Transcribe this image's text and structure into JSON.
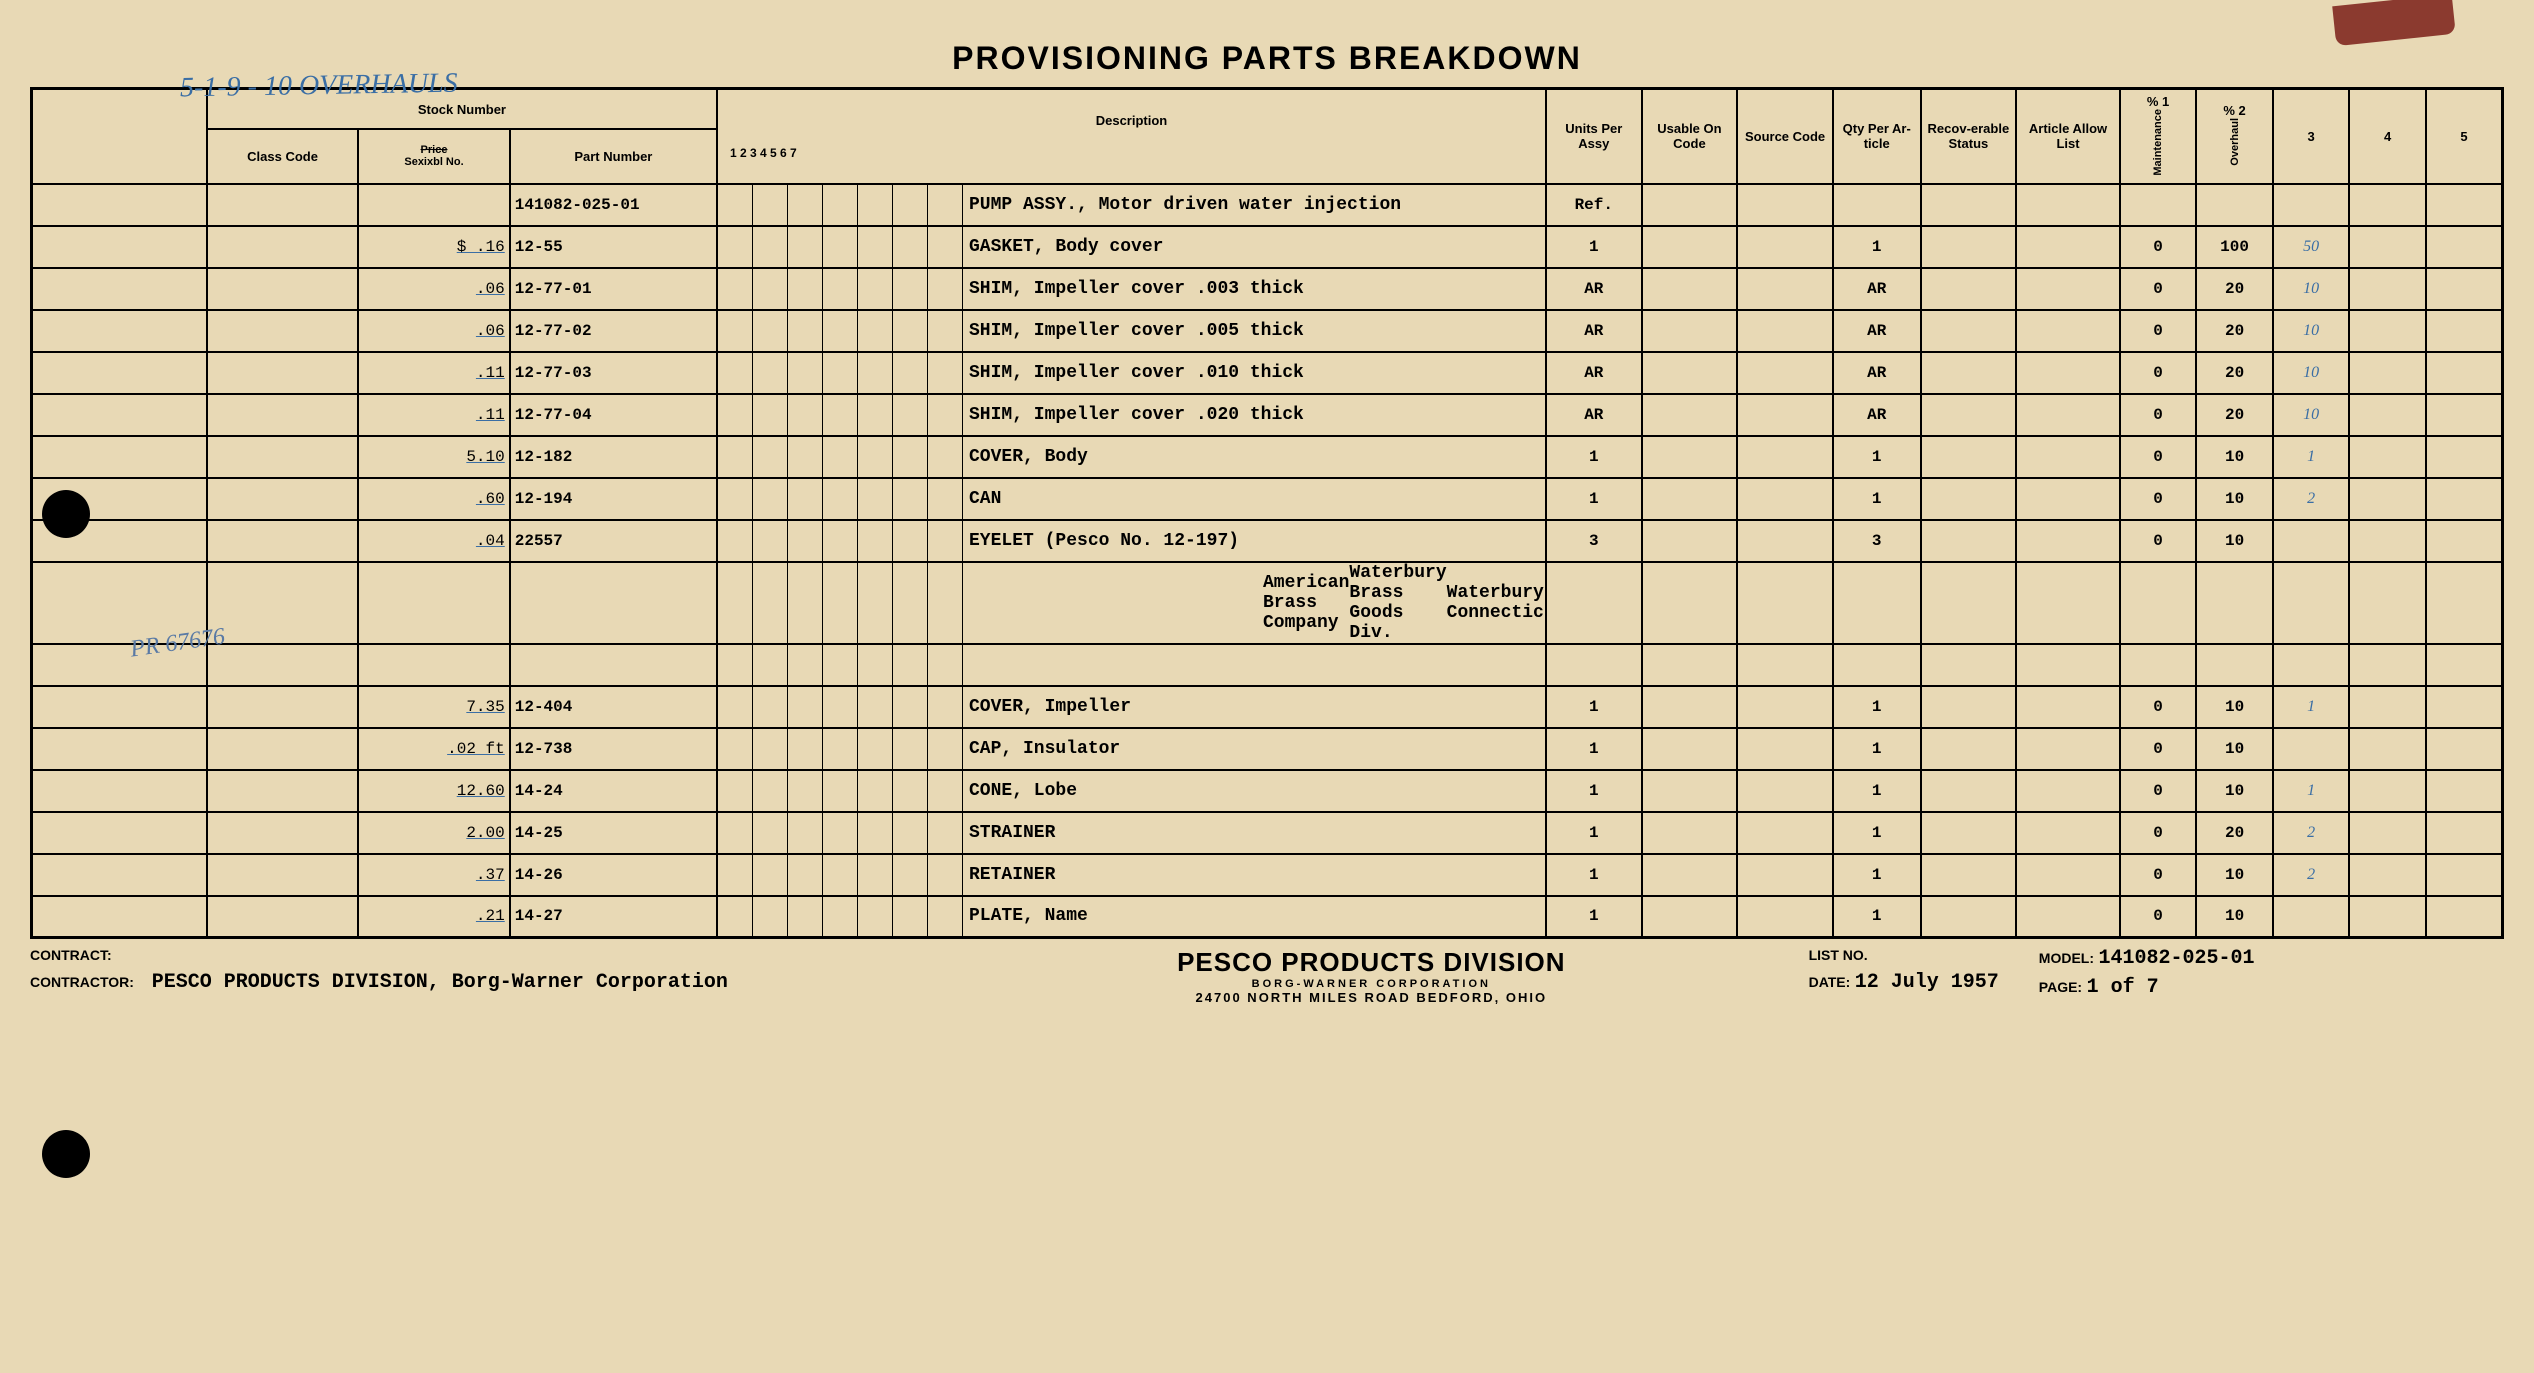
{
  "title": "PROVISIONING PARTS BREAKDOWN",
  "handwriting_top": "5-1-9 -   10 OVERHAULS",
  "headers": {
    "stock_number": "Stock Number",
    "class_code": "Class Code",
    "price_strike": "Price",
    "price_label": "Sexixbl No.",
    "part_number": "Part Number",
    "description": "Description",
    "desc_nums": [
      "1",
      "2",
      "3",
      "4",
      "5",
      "6",
      "7"
    ],
    "units": "Units Per Assy",
    "usable": "Usable On Code",
    "source": "Source Code",
    "qty": "Qty Per Ar-ticle",
    "recov": "Recov-erable Status",
    "article": "Article Allow List",
    "pct1": "% 1",
    "maint": "Maintenance",
    "pct2": "% 2",
    "overhaul": "Overhaul",
    "pct3": "3",
    "pct4": "4",
    "pct5": "5"
  },
  "rows": [
    {
      "price": "",
      "part": "141082-025-01",
      "desc": "PUMP ASSY., Motor driven water injection",
      "units": "Ref.",
      "qty": "",
      "p1": "",
      "p2": "",
      "hand3": ""
    },
    {
      "price": "$  .16",
      "part": "12-55",
      "desc": "GASKET, Body cover",
      "units": "1",
      "qty": "1",
      "p1": "0",
      "p2": "100",
      "hand3": "50"
    },
    {
      "price": ".06",
      "part": "12-77-01",
      "desc": "SHIM, Impeller cover   .003 thick",
      "units": "AR",
      "qty": "AR",
      "p1": "0",
      "p2": "20",
      "hand3": "10"
    },
    {
      "price": ".06",
      "part": "12-77-02",
      "desc": "SHIM, Impeller cover   .005 thick",
      "units": "AR",
      "qty": "AR",
      "p1": "0",
      "p2": "20",
      "hand3": "10"
    },
    {
      "price": ".11",
      "part": "12-77-03",
      "desc": "SHIM, Impeller cover   .010 thick",
      "units": "AR",
      "qty": "AR",
      "p1": "0",
      "p2": "20",
      "hand3": "10"
    },
    {
      "price": ".11",
      "part": "12-77-04",
      "desc": "SHIM, Impeller cover   .020 thick",
      "units": "AR",
      "qty": "AR",
      "p1": "0",
      "p2": "20",
      "hand3": "10"
    },
    {
      "price": "5.10",
      "part": "12-182",
      "desc": "COVER, Body",
      "units": "1",
      "qty": "1",
      "p1": "0",
      "p2": "10",
      "hand3": "1"
    },
    {
      "price": ".60",
      "part": "12-194",
      "desc": "CAN",
      "units": "1",
      "qty": "1",
      "p1": "0",
      "p2": "10",
      "hand3": "2"
    },
    {
      "price": ".04",
      "part": "22557",
      "desc": "EYELET (Pesco No. 12-197)",
      "units": "3",
      "qty": "3",
      "p1": "0",
      "p2": "10",
      "hand3": ""
    },
    {
      "price": "",
      "part": "",
      "desc": "American Brass Company\nWaterbury Brass Goods Div.\nWaterbury, Connecticut",
      "units": "",
      "qty": "",
      "p1": "",
      "p2": "",
      "hand3": "",
      "tall": true,
      "indent": true
    },
    {
      "price": "",
      "part": "",
      "desc": "",
      "units": "",
      "qty": "",
      "p1": "",
      "p2": "",
      "hand3": ""
    },
    {
      "price": "7.35",
      "part": "12-404",
      "desc": "COVER, Impeller",
      "units": "1",
      "qty": "1",
      "p1": "0",
      "p2": "10",
      "hand3": "1"
    },
    {
      "price": ".02 ft",
      "part": "12-738",
      "desc": "CAP, Insulator",
      "units": "1",
      "qty": "1",
      "p1": "0",
      "p2": "10",
      "hand3": ""
    },
    {
      "price": "12.60",
      "part": "14-24",
      "desc": "CONE, Lobe",
      "units": "1",
      "qty": "1",
      "p1": "0",
      "p2": "10",
      "hand3": "1"
    },
    {
      "price": "2.00",
      "part": "14-25",
      "desc": "STRAINER",
      "units": "1",
      "qty": "1",
      "p1": "0",
      "p2": "20",
      "hand3": "2"
    },
    {
      "price": ".37",
      "part": "14-26",
      "desc": "RETAINER",
      "units": "1",
      "qty": "1",
      "p1": "0",
      "p2": "10",
      "hand3": "2"
    },
    {
      "price": ".21",
      "part": "14-27",
      "desc": "PLATE, Name",
      "units": "1",
      "qty": "1",
      "p1": "0",
      "p2": "10",
      "hand3": ""
    }
  ],
  "margin_note": "PR 67676",
  "footer": {
    "contract_label": "CONTRACT:",
    "contractor_label": "CONTRACTOR:",
    "contractor": "PESCO PRODUCTS DIVISION, Borg-Warner Corporation",
    "company": "PESCO PRODUCTS DIVISION",
    "company_sub": "BORG-WARNER CORPORATION",
    "address": "24700 NORTH MILES ROAD      BEDFORD, OHIO",
    "list_label": "LIST NO.",
    "date_label": "DATE:",
    "date": "12 July 1957",
    "model_label": "MODEL:",
    "model": "141082-025-01",
    "page_label": "PAGE:",
    "page": "1 of 7"
  }
}
